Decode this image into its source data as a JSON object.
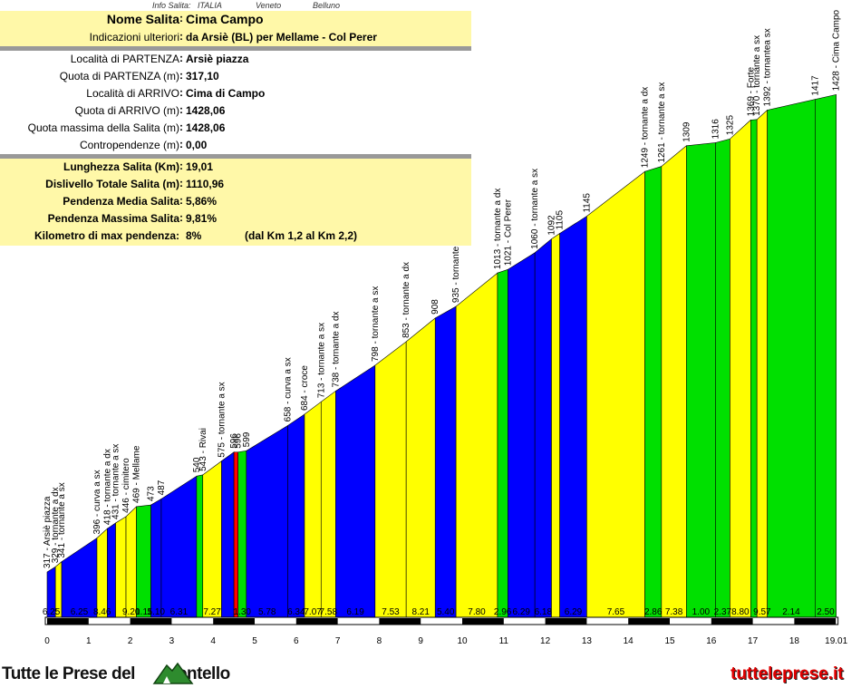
{
  "header": {
    "info_label": "Info Salita:",
    "country": "ITALIA",
    "region": "Veneto",
    "province": "Belluno"
  },
  "info": {
    "name_label": "Nome Salita",
    "name": "Cima Campo",
    "extra_label": "Indicazioni ulteriori",
    "extra": "da Arsiè (BL) per Mellame - Col Perer",
    "start_loc_label": "Località di PARTENZA",
    "start_loc": "Arsiè piazza",
    "start_alt_label": "Quota di PARTENZA (m)",
    "start_alt": "317,10",
    "end_loc_label": "Località di ARRIVO",
    "end_loc": "Cima di Campo",
    "end_alt_label": "Quota di ARRIVO (m)",
    "end_alt": "1428,06",
    "max_alt_label": "Quota massima della Salita (m)",
    "max_alt": "1428,06",
    "counter_label": "Contropendenze (m)",
    "counter": "0,00"
  },
  "summary": {
    "length_label": "Lunghezza Salita (Km)",
    "length": "19,01",
    "gain_label": "Dislivello Totale Salita (m)",
    "gain": "1110,96",
    "avg_label": "Pendenza Media Salita",
    "avg": "5,86%",
    "max_label": "Pendenza Massima Salita",
    "max": "9,81%",
    "maxkm_label": "Kilometro di max pendenza:",
    "maxkm": "8%",
    "maxkm_note": "(dal Km 1,2 al Km 2,2)"
  },
  "branding": {
    "left_pre": "Tutte le Prese del",
    "left_post": "ontello",
    "right": "tutteleprese.it"
  },
  "colors": {
    "blue": "#0000ff",
    "yellow": "#ffff00",
    "green": "#00e000",
    "red": "#ff0000",
    "table_yellow": "#fff8a8"
  },
  "chart_data": {
    "type": "area",
    "x_unit": "km",
    "x_ticks": [
      "0",
      "1",
      "2",
      "3",
      "4",
      "5",
      "6",
      "7",
      "8",
      "9",
      "10",
      "11",
      "12",
      "13",
      "14",
      "15",
      "16",
      "17",
      "18",
      "19.01"
    ],
    "xlim": [
      0,
      19.01
    ],
    "segments": [
      {
        "x0": 0.0,
        "x1": 0.2,
        "y0": 317,
        "y1": 329,
        "color": "blue",
        "grade": "6.25"
      },
      {
        "x0": 0.2,
        "x1": 0.35,
        "y0": 329,
        "y1": 341,
        "color": "yellow",
        "grade": ""
      },
      {
        "x0": 0.35,
        "x1": 1.2,
        "y0": 341,
        "y1": 396,
        "color": "blue",
        "grade": "6.25"
      },
      {
        "x0": 1.2,
        "x1": 1.45,
        "y0": 396,
        "y1": 418,
        "color": "yellow",
        "grade": "8.46"
      },
      {
        "x0": 1.45,
        "x1": 1.65,
        "y0": 418,
        "y1": 431,
        "color": "blue",
        "grade": ""
      },
      {
        "x0": 1.65,
        "x1": 1.9,
        "y0": 431,
        "y1": 446,
        "color": "yellow",
        "grade": ""
      },
      {
        "x0": 1.9,
        "x1": 2.15,
        "y0": 446,
        "y1": 469,
        "color": "yellow",
        "grade": "9.20"
      },
      {
        "x0": 2.15,
        "x1": 2.5,
        "y0": 469,
        "y1": 473,
        "color": "green",
        "grade": "1.11"
      },
      {
        "x0": 2.5,
        "x1": 2.75,
        "y0": 473,
        "y1": 487,
        "color": "blue",
        "grade": "5.10"
      },
      {
        "x0": 2.75,
        "x1": 3.6,
        "y0": 487,
        "y1": 540,
        "color": "blue",
        "grade": "6.31"
      },
      {
        "x0": 3.6,
        "x1": 3.75,
        "y0": 540,
        "y1": 543,
        "color": "green",
        "grade": ""
      },
      {
        "x0": 3.75,
        "x1": 4.2,
        "y0": 543,
        "y1": 575,
        "color": "yellow",
        "grade": "7.27"
      },
      {
        "x0": 4.2,
        "x1": 4.5,
        "y0": 575,
        "y1": 596,
        "color": "blue",
        "grade": ""
      },
      {
        "x0": 4.5,
        "x1": 4.6,
        "y0": 596,
        "y1": 596,
        "color": "red",
        "grade": ""
      },
      {
        "x0": 4.6,
        "x1": 4.8,
        "y0": 596,
        "y1": 599,
        "color": "green",
        "grade": "1.30"
      },
      {
        "x0": 4.8,
        "x1": 5.8,
        "y0": 599,
        "y1": 658,
        "color": "blue",
        "grade": "5.78"
      },
      {
        "x0": 5.8,
        "x1": 6.2,
        "y0": 658,
        "y1": 684,
        "color": "blue",
        "grade": "6.34"
      },
      {
        "x0": 6.2,
        "x1": 6.6,
        "y0": 684,
        "y1": 713,
        "color": "yellow",
        "grade": "7.07"
      },
      {
        "x0": 6.6,
        "x1": 6.95,
        "y0": 713,
        "y1": 738,
        "color": "yellow",
        "grade": "7.58"
      },
      {
        "x0": 6.95,
        "x1": 7.9,
        "y0": 738,
        "y1": 798,
        "color": "blue",
        "grade": "6.19"
      },
      {
        "x0": 7.9,
        "x1": 8.65,
        "y0": 798,
        "y1": 853,
        "color": "yellow",
        "grade": "7.53"
      },
      {
        "x0": 8.65,
        "x1": 9.35,
        "y0": 853,
        "y1": 908,
        "color": "yellow",
        "grade": "8.21"
      },
      {
        "x0": 9.35,
        "x1": 9.85,
        "y0": 908,
        "y1": 935,
        "color": "blue",
        "grade": "5.40"
      },
      {
        "x0": 9.85,
        "x1": 10.85,
        "y0": 935,
        "y1": 1013,
        "color": "yellow",
        "grade": "7.80"
      },
      {
        "x0": 10.85,
        "x1": 11.1,
        "y0": 1013,
        "y1": 1021,
        "color": "green",
        "grade": "2.96"
      },
      {
        "x0": 11.1,
        "x1": 11.75,
        "y0": 1021,
        "y1": 1060,
        "color": "blue",
        "grade": "6.29"
      },
      {
        "x0": 11.75,
        "x1": 12.15,
        "y0": 1060,
        "y1": 1092,
        "color": "blue",
        "grade": "6.18"
      },
      {
        "x0": 12.15,
        "x1": 12.35,
        "y0": 1092,
        "y1": 1105,
        "color": "yellow",
        "grade": ""
      },
      {
        "x0": 12.35,
        "x1": 13.0,
        "y0": 1105,
        "y1": 1145,
        "color": "blue",
        "grade": "6.29"
      },
      {
        "x0": 13.0,
        "x1": 14.4,
        "y0": 1145,
        "y1": 1249,
        "color": "yellow",
        "grade": "7.65"
      },
      {
        "x0": 14.4,
        "x1": 14.8,
        "y0": 1249,
        "y1": 1261,
        "color": "green",
        "grade": "2.86"
      },
      {
        "x0": 14.8,
        "x1": 15.4,
        "y0": 1261,
        "y1": 1309,
        "color": "yellow",
        "grade": "7.38"
      },
      {
        "x0": 15.4,
        "x1": 16.1,
        "y0": 1309,
        "y1": 1316,
        "color": "green",
        "grade": "1.00"
      },
      {
        "x0": 16.1,
        "x1": 16.45,
        "y0": 1316,
        "y1": 1325,
        "color": "green",
        "grade": "2.37"
      },
      {
        "x0": 16.45,
        "x1": 16.95,
        "y0": 1325,
        "y1": 1369,
        "color": "yellow",
        "grade": "8.80"
      },
      {
        "x0": 16.95,
        "x1": 17.1,
        "y0": 1369,
        "y1": 1370,
        "color": "green",
        "grade": ""
      },
      {
        "x0": 17.1,
        "x1": 17.35,
        "y0": 1370,
        "y1": 1392,
        "color": "yellow",
        "grade": "9.57"
      },
      {
        "x0": 17.35,
        "x1": 18.5,
        "y0": 1392,
        "y1": 1417,
        "color": "green",
        "grade": "2.14"
      },
      {
        "x0": 18.5,
        "x1": 19.01,
        "y0": 1417,
        "y1": 1428,
        "color": "green",
        "grade": "2.50"
      }
    ],
    "annotations": [
      {
        "x": 0.0,
        "alt": 317,
        "text": "317 - Arsiè piazza"
      },
      {
        "x": 0.2,
        "alt": 329,
        "text": "329 - tornante a dx"
      },
      {
        "x": 0.35,
        "alt": 341,
        "text": "341 - tornante a sx"
      },
      {
        "x": 1.2,
        "alt": 396,
        "text": "396 - curva a sx"
      },
      {
        "x": 1.45,
        "alt": 418,
        "text": "418 - tornante a dx"
      },
      {
        "x": 1.65,
        "alt": 431,
        "text": "431 - tornante a sx"
      },
      {
        "x": 1.9,
        "alt": 446,
        "text": "446 - cimitero"
      },
      {
        "x": 2.15,
        "alt": 469,
        "text": "469 - Mellame"
      },
      {
        "x": 2.5,
        "alt": 473,
        "text": "473"
      },
      {
        "x": 2.75,
        "alt": 487,
        "text": "487"
      },
      {
        "x": 3.6,
        "alt": 540,
        "text": "540"
      },
      {
        "x": 3.75,
        "alt": 543,
        "text": "543 - Rivai"
      },
      {
        "x": 4.2,
        "alt": 575,
        "text": "575 - tornante a sx"
      },
      {
        "x": 4.5,
        "alt": 596,
        "text": "596"
      },
      {
        "x": 4.6,
        "alt": 596,
        "text": "596"
      },
      {
        "x": 4.8,
        "alt": 599,
        "text": "599"
      },
      {
        "x": 5.8,
        "alt": 658,
        "text": "658 - curva a sx"
      },
      {
        "x": 6.2,
        "alt": 684,
        "text": "684 - croce"
      },
      {
        "x": 6.6,
        "alt": 713,
        "text": "713 - tornante a sx"
      },
      {
        "x": 6.95,
        "alt": 738,
        "text": "738 - tornante a dx"
      },
      {
        "x": 7.9,
        "alt": 798,
        "text": "798 - tornante a sx"
      },
      {
        "x": 8.65,
        "alt": 853,
        "text": "853 - tornante a dx"
      },
      {
        "x": 9.35,
        "alt": 908,
        "text": "908"
      },
      {
        "x": 9.85,
        "alt": 935,
        "text": "935 - tornante"
      },
      {
        "x": 10.85,
        "alt": 1013,
        "text": "1013 - tornante a dx"
      },
      {
        "x": 11.1,
        "alt": 1021,
        "text": "1021 - Col Perer"
      },
      {
        "x": 11.75,
        "alt": 1060,
        "text": "1060 - tornante a sx"
      },
      {
        "x": 12.15,
        "alt": 1092,
        "text": "1092"
      },
      {
        "x": 12.35,
        "alt": 1105,
        "text": "1105"
      },
      {
        "x": 13.0,
        "alt": 1145,
        "text": "1145"
      },
      {
        "x": 14.4,
        "alt": 1249,
        "text": "1249 - tornante a dx"
      },
      {
        "x": 14.8,
        "alt": 1261,
        "text": "1261 - tornante a sx"
      },
      {
        "x": 15.4,
        "alt": 1309,
        "text": "1309"
      },
      {
        "x": 16.1,
        "alt": 1316,
        "text": "1316"
      },
      {
        "x": 16.45,
        "alt": 1325,
        "text": "1325"
      },
      {
        "x": 16.95,
        "alt": 1369,
        "text": "1369 - Forte"
      },
      {
        "x": 17.1,
        "alt": 1370,
        "text": "1370 - tornante a sx"
      },
      {
        "x": 17.35,
        "alt": 1392,
        "text": "1392 - tornantea sx"
      },
      {
        "x": 18.5,
        "alt": 1417,
        "text": "1417"
      },
      {
        "x": 19.01,
        "alt": 1428,
        "text": "1428 - Cima Campo"
      }
    ]
  }
}
